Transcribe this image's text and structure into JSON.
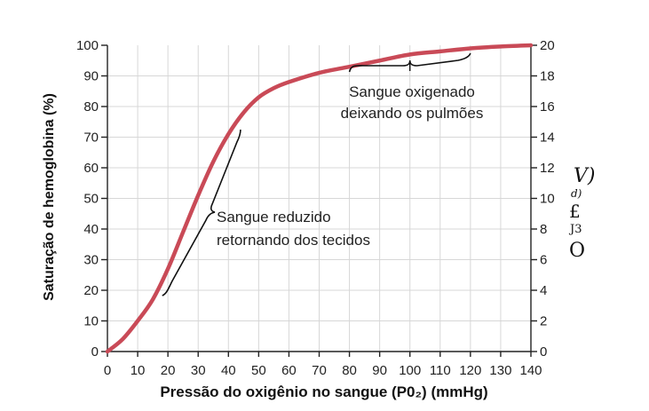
{
  "chart_data": {
    "type": "line",
    "xlabel": "Pressão do oxigênio no sangue (P0₂) (mmHg)",
    "ylabel": "Saturação de hemoglobina (%)",
    "xlim": [
      0,
      140
    ],
    "ylim": [
      0,
      100
    ],
    "x_ticks": [
      "0",
      "10",
      "20",
      "30",
      "40",
      "50",
      "60",
      "70",
      "80",
      "90",
      "100",
      "110",
      "120",
      "130",
      "140"
    ],
    "y_ticks": [
      "0",
      "10",
      "20",
      "30",
      "40",
      "50",
      "60",
      "70",
      "80",
      "90",
      "100"
    ],
    "y2_ticks": [
      "0",
      "2",
      "4",
      "6",
      "8",
      "10",
      "12",
      "14",
      "16",
      "18",
      "20"
    ],
    "y2_side_glyphs": [
      "V)",
      "d)",
      "£",
      "J3",
      "O"
    ],
    "color": "#c94a57",
    "series": [
      {
        "x": [
          0,
          5,
          10,
          15,
          20,
          25,
          30,
          35,
          40,
          45,
          50,
          55,
          60,
          70,
          80,
          90,
          100,
          110,
          120,
          130,
          140
        ],
        "y": [
          0,
          4,
          10,
          17,
          27,
          39,
          51,
          62,
          71,
          78,
          83,
          86,
          88,
          91,
          93,
          95,
          97,
          98,
          99,
          99.6,
          100
        ]
      }
    ],
    "annotations": [
      {
        "line1": "Sangue oxigenado",
        "line2": "deixando os pulmões",
        "x_range": [
          80,
          120
        ]
      },
      {
        "line1": "Sangue reduzido",
        "line2": "retornando dos tecidos",
        "x_range": [
          19,
          44
        ]
      }
    ],
    "grid": true
  }
}
